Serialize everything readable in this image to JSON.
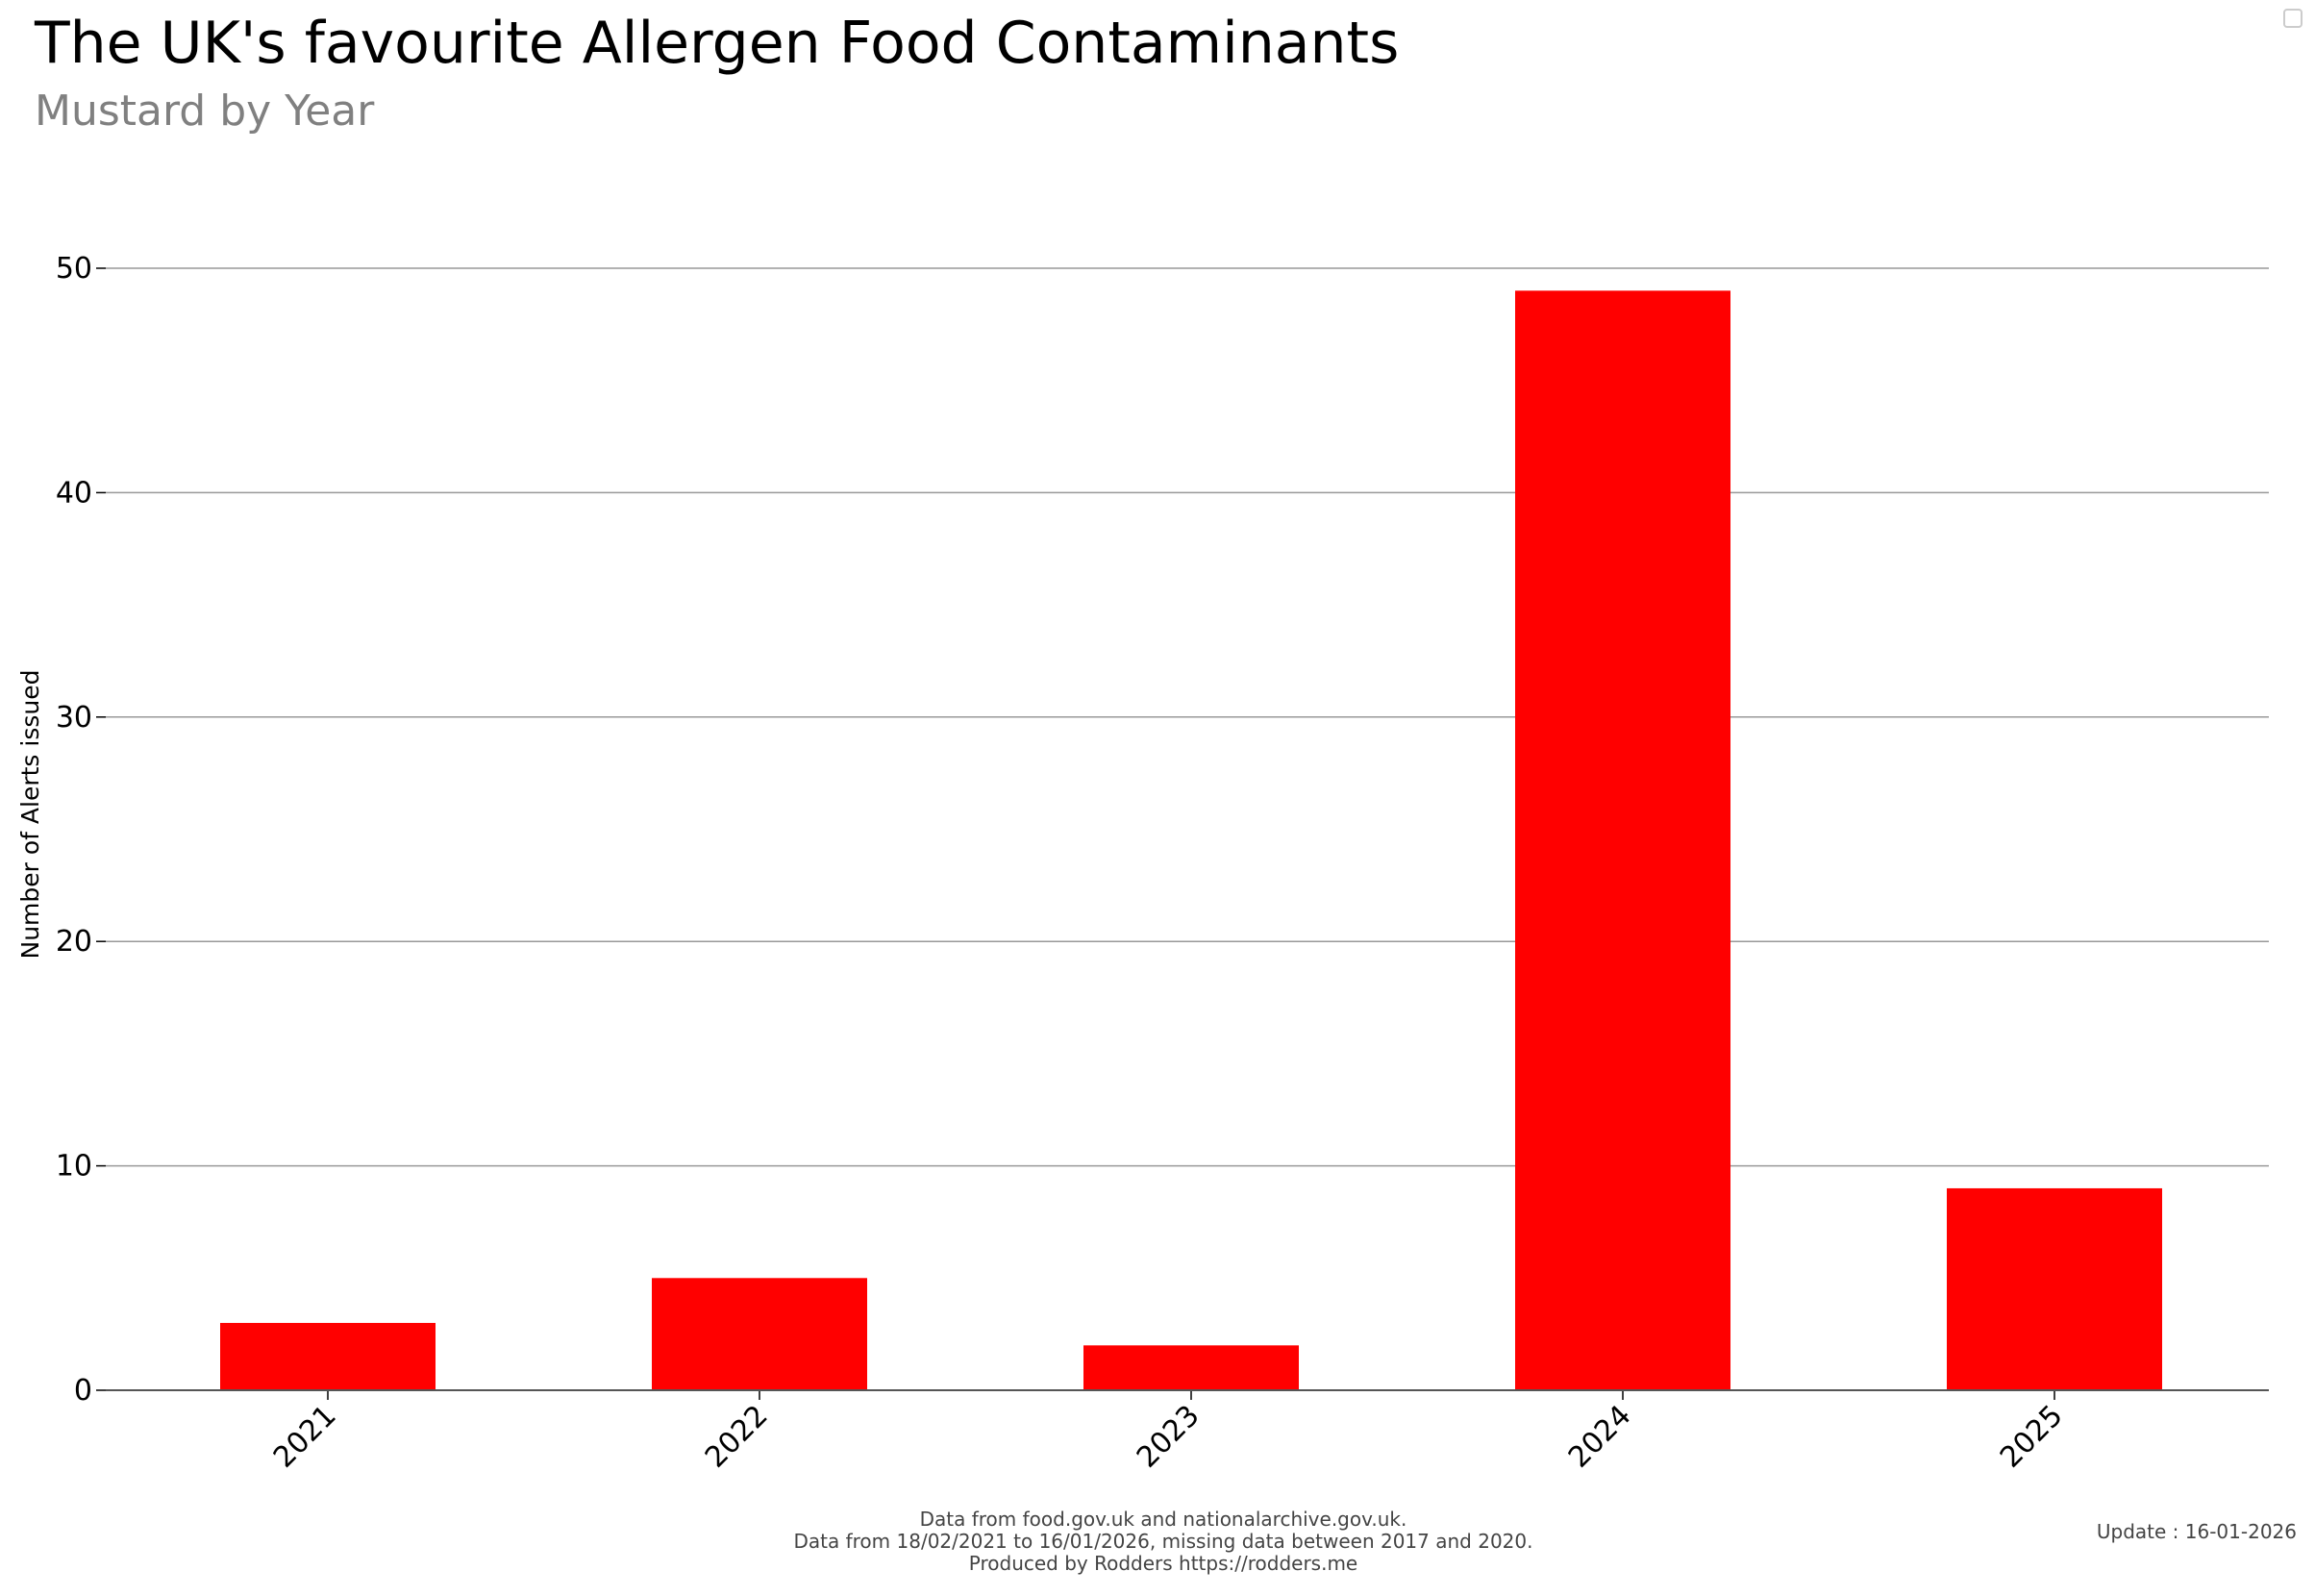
{
  "chart_data": {
    "type": "bar",
    "title": "The UK's favourite Allergen Food Contaminants",
    "subtitle": "Mustard by Year",
    "xlabel": "",
    "ylabel": "Number of Alerts issued",
    "categories": [
      "2021",
      "2022",
      "2023",
      "2024",
      "2025"
    ],
    "values": [
      3,
      5,
      2,
      49,
      9
    ],
    "ylim": [
      0,
      50
    ],
    "yticks": [
      0,
      10,
      20,
      30,
      40,
      50
    ],
    "grid": true,
    "bar_color": "#ff0000"
  },
  "footer": {
    "line1": "Data from food.gov.uk and nationalarchive.gov.uk.",
    "line2": "Data from 18/02/2021 to 16/01/2026, missing data between 2017 and 2020.",
    "line3": "Produced by Rodders https://rodders.me"
  },
  "update_label": "Update : 16-01-2026"
}
